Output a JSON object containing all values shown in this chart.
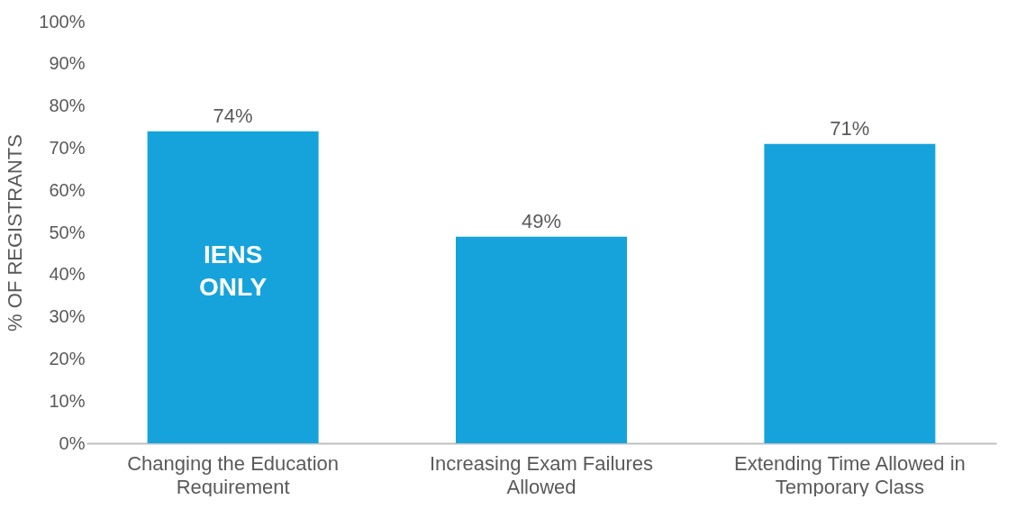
{
  "chart_data": {
    "type": "bar",
    "categories": [
      "Changing the Education Requirement",
      "Increasing Exam Failures Allowed",
      "Extending Time Allowed in Temporary Class"
    ],
    "values": [
      74,
      49,
      71
    ],
    "color": "#16a3dc",
    "value_labels": [
      "74%",
      "49%",
      "71%"
    ],
    "ylabel": "% OF REGISTRANTS",
    "ylim": [
      0,
      100
    ],
    "yticks": [
      {
        "value": 0,
        "label": "0%"
      },
      {
        "value": 10,
        "label": "10%"
      },
      {
        "value": 20,
        "label": "20%"
      },
      {
        "value": 30,
        "label": "30%"
      },
      {
        "value": 40,
        "label": "40%"
      },
      {
        "value": 50,
        "label": "50%"
      },
      {
        "value": 60,
        "label": "60%"
      },
      {
        "value": 70,
        "label": "70%"
      },
      {
        "value": 80,
        "label": "80%"
      },
      {
        "value": 90,
        "label": "90%"
      },
      {
        "value": 100,
        "label": "100%"
      }
    ],
    "annotations": [
      "IENS ONLY"
    ],
    "grid": false
  }
}
